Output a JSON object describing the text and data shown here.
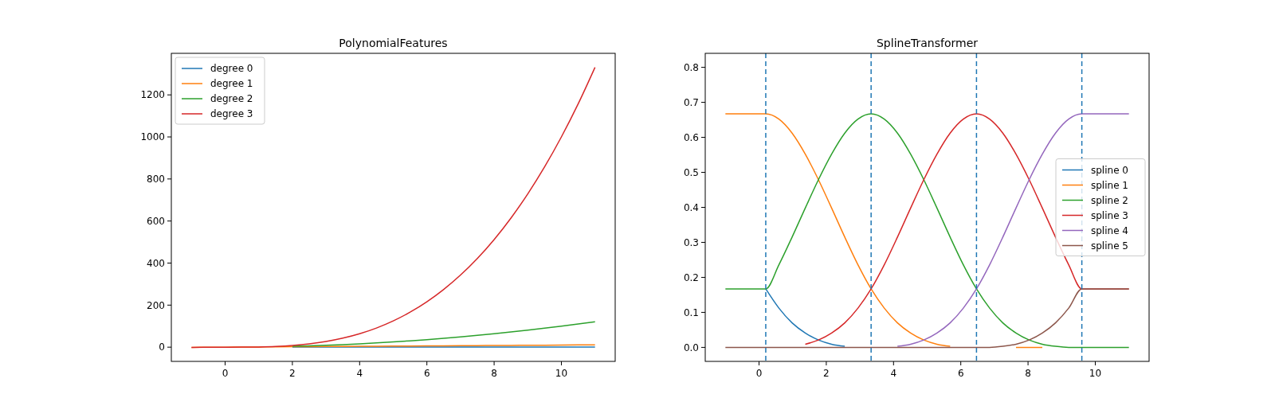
{
  "chart_data": [
    {
      "type": "line",
      "title": "PolynomialFeatures",
      "x": [
        -1,
        -0.5,
        0,
        0.5,
        1,
        1.5,
        2,
        2.5,
        3,
        3.5,
        4,
        4.5,
        5,
        5.5,
        6,
        6.5,
        7,
        7.5,
        8,
        8.5,
        9,
        9.5,
        10,
        10.5,
        11
      ],
      "series": [
        {
          "name": "degree 0",
          "color": "#1f77b4",
          "values": [
            null,
            null,
            null,
            null,
            null,
            null,
            1,
            1,
            1,
            1,
            1,
            1,
            1,
            1,
            1,
            1,
            1,
            1,
            1,
            1,
            1,
            1,
            1,
            1,
            1
          ]
        },
        {
          "name": "degree 1",
          "color": "#ff7f0e",
          "values": [
            -1,
            -0.5,
            0,
            0.5,
            1,
            1.5,
            2,
            2.5,
            3,
            3.5,
            4,
            4.5,
            5,
            5.5,
            6,
            6.5,
            7,
            7.5,
            8,
            8.5,
            9,
            9.5,
            10,
            10.5,
            11
          ]
        },
        {
          "name": "degree 2",
          "color": "#2ca02c",
          "values": [
            null,
            null,
            null,
            null,
            null,
            null,
            4,
            6.25,
            9,
            12.25,
            16,
            20.25,
            25,
            30.25,
            36,
            42.25,
            49,
            56.25,
            64,
            72.25,
            81,
            90.25,
            100,
            110.25,
            121
          ]
        },
        {
          "name": "degree 3",
          "color": "#d62728",
          "values": [
            -1,
            -0.125,
            0,
            0.125,
            1,
            3.375,
            8,
            15.625,
            27,
            42.875,
            64,
            91.125,
            125,
            166.375,
            216,
            274.625,
            343,
            421.875,
            512,
            614.125,
            729,
            857.375,
            1000,
            1157.625,
            1331
          ]
        }
      ],
      "xlim": [
        -1.6,
        11.6
      ],
      "xticks": [
        0,
        2,
        4,
        6,
        8,
        10
      ],
      "ylim": [
        -67.6,
        1397.6
      ],
      "yticks": [
        0,
        200,
        400,
        600,
        800,
        1000,
        1200
      ],
      "legend": "top left",
      "grid": false
    },
    {
      "type": "line",
      "title": "SplineTransformer",
      "x": [
        -1,
        0.2,
        0.5917,
        0.9833,
        1.375,
        1.7667,
        2.1583,
        2.55,
        2.9417,
        3.3333,
        3.725,
        4.1167,
        4.5083,
        4.9,
        5.2917,
        5.6833,
        6.075,
        6.4667,
        6.8583,
        7.25,
        7.6417,
        8.0333,
        8.425,
        8.8167,
        9.2083,
        9.6,
        11
      ],
      "series": [
        {
          "name": "spline 0",
          "color": "#1f77b4",
          "values": [
            null,
            0.167,
            0.112,
            0.07,
            0.041,
            0.021,
            0.009,
            0.003,
            null,
            null,
            null,
            null,
            null,
            null,
            null,
            null,
            null,
            null,
            null,
            null,
            null,
            null,
            null,
            null,
            null,
            null,
            null
          ]
        },
        {
          "name": "spline 1",
          "color": "#ff7f0e",
          "values": [
            0.667,
            0.667,
            0.652,
            0.612,
            0.552,
            0.479,
            0.398,
            0.315,
            0.236,
            0.167,
            0.112,
            0.07,
            0.041,
            0.021,
            0.009,
            0.003,
            null,
            null,
            null,
            null,
            0,
            0,
            0,
            null,
            null,
            null,
            null
          ]
        },
        {
          "name": "spline 2",
          "color": "#2ca02c",
          "values": [
            0.167,
            0.167,
            0.236,
            0.315,
            0.398,
            0.479,
            0.552,
            0.612,
            0.652,
            0.667,
            0.652,
            0.612,
            0.552,
            0.479,
            0.398,
            0.315,
            0.236,
            0.167,
            0.112,
            0.07,
            0.041,
            0.021,
            0.009,
            0.003,
            0,
            0,
            0
          ]
        },
        {
          "name": "spline 3",
          "color": "#d62728",
          "values": [
            null,
            null,
            null,
            null,
            0.009,
            0.021,
            0.041,
            0.07,
            0.112,
            0.167,
            0.236,
            0.315,
            0.398,
            0.479,
            0.552,
            0.612,
            0.652,
            0.667,
            0.652,
            0.612,
            0.552,
            0.479,
            0.398,
            0.315,
            0.236,
            0.167,
            0.167
          ]
        },
        {
          "name": "spline 4",
          "color": "#9467bd",
          "values": [
            null,
            null,
            null,
            null,
            null,
            null,
            null,
            null,
            null,
            null,
            null,
            0.003,
            0.009,
            0.021,
            0.041,
            0.07,
            0.112,
            0.167,
            0.236,
            0.315,
            0.398,
            0.479,
            0.552,
            0.612,
            0.652,
            0.667,
            0.667
          ]
        },
        {
          "name": "spline 5",
          "color": "#8c564b",
          "values": [
            0,
            0,
            0,
            0,
            0,
            0,
            0,
            0,
            0,
            0,
            0,
            0,
            0,
            0,
            0,
            0,
            0,
            0,
            0,
            0.003,
            0.009,
            0.021,
            0.041,
            0.07,
            0.112,
            0.167,
            0.167
          ]
        }
      ],
      "ref_lines": [
        {
          "axis": "x",
          "value": 0.2,
          "color": "#1f77b4",
          "line_style": "dashed"
        },
        {
          "axis": "x",
          "value": 3.333,
          "color": "#1f77b4",
          "line_style": "dashed"
        },
        {
          "axis": "x",
          "value": 6.467,
          "color": "#1f77b4",
          "line_style": "dashed"
        },
        {
          "axis": "x",
          "value": 9.6,
          "color": "#1f77b4",
          "line_style": "dashed"
        }
      ],
      "xlim": [
        -1.6,
        11.6
      ],
      "xticks": [
        0,
        2,
        4,
        6,
        8,
        10
      ],
      "ylim": [
        -0.04,
        0.84
      ],
      "yticks": [
        {
          "value": 0,
          "label": "0.0"
        },
        {
          "value": 0.1,
          "label": "0.1"
        },
        {
          "value": 0.2,
          "label": "0.2"
        },
        {
          "value": 0.3,
          "label": "0.3"
        },
        {
          "value": 0.4,
          "label": "0.4"
        },
        {
          "value": 0.5,
          "label": "0.5"
        },
        {
          "value": 0.6,
          "label": "0.6"
        },
        {
          "value": 0.7,
          "label": "0.7"
        },
        {
          "value": 0.8,
          "label": "0.8"
        }
      ],
      "legend": "right",
      "grid": false
    }
  ]
}
